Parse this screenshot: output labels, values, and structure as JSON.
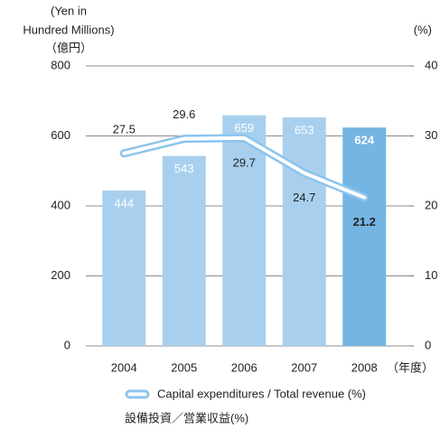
{
  "chart_data": {
    "type": "bar_line",
    "y_label_lines": [
      "(Yen in",
      "Hundred Millions)"
    ],
    "y_label_jp": "（億円）",
    "y2_label": "(%)",
    "x_unit": "（年度）",
    "categories": [
      "2004",
      "2005",
      "2006",
      "2007",
      "2008"
    ],
    "series": [
      {
        "name": "Capital expenditures",
        "color": "#a8d0ee",
        "highlight_color": "#74b5e4",
        "values": [
          444,
          543,
          659,
          653,
          624
        ]
      },
      {
        "name": "Capital expenditures / Total revenue (%)",
        "name_jp": "設備投資／営業収益(%)",
        "color": "#8cc4ec",
        "axis": "y2",
        "values": [
          27.5,
          29.6,
          29.7,
          24.7,
          21.2
        ]
      }
    ],
    "ylim": [
      0,
      800
    ],
    "yticks": [
      0,
      200,
      400,
      600,
      800
    ],
    "y2lim": [
      0,
      40
    ],
    "y2ticks": [
      0,
      10,
      20,
      30,
      40
    ]
  }
}
